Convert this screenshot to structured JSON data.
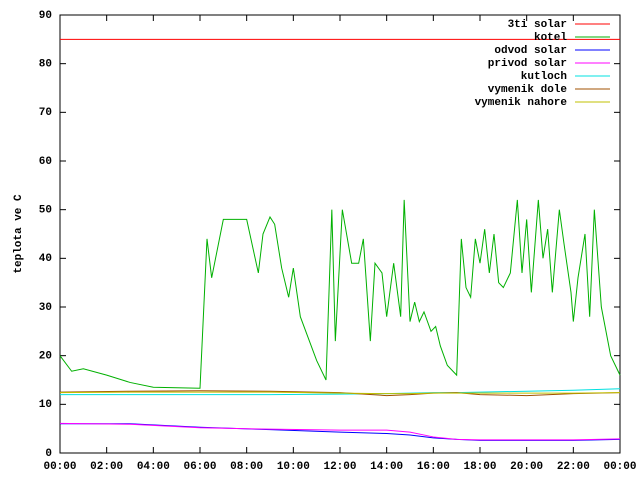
{
  "chart_data": {
    "type": "line",
    "ylabel": "teplota ve C",
    "xlim": [
      0,
      24
    ],
    "ylim": [
      0,
      90
    ],
    "xticks": [
      {
        "value": 0,
        "label": "00:00"
      },
      {
        "value": 2,
        "label": "02:00"
      },
      {
        "value": 4,
        "label": "04:00"
      },
      {
        "value": 6,
        "label": "06:00"
      },
      {
        "value": 8,
        "label": "08:00"
      },
      {
        "value": 10,
        "label": "10:00"
      },
      {
        "value": 12,
        "label": "12:00"
      },
      {
        "value": 14,
        "label": "14:00"
      },
      {
        "value": 16,
        "label": "16:00"
      },
      {
        "value": 18,
        "label": "18:00"
      },
      {
        "value": 20,
        "label": "20:00"
      },
      {
        "value": 22,
        "label": "22:00"
      },
      {
        "value": 24,
        "label": "00:00"
      }
    ],
    "yticks": [
      0,
      10,
      20,
      30,
      40,
      50,
      60,
      70,
      80,
      90
    ],
    "legend": "top-right",
    "series": [
      {
        "name": "3ti solar",
        "color": "#ff0000",
        "x": [
          0,
          24
        ],
        "values": [
          85,
          85
        ]
      },
      {
        "name": "kotel",
        "color": "#00b000",
        "x": [
          0,
          0.5,
          1,
          2,
          3,
          4,
          5,
          6,
          6.3,
          6.5,
          7,
          8,
          8.5,
          8.7,
          9,
          9.2,
          9.5,
          9.8,
          10,
          10.3,
          11,
          11.4,
          11.65,
          11.8,
          12.1,
          12.5,
          12.8,
          13,
          13.3,
          13.5,
          13.8,
          14,
          14.3,
          14.6,
          14.75,
          15,
          15.2,
          15.4,
          15.6,
          15.9,
          16.1,
          16.3,
          16.6,
          17,
          17.2,
          17.4,
          17.6,
          17.8,
          18,
          18.2,
          18.4,
          18.6,
          18.8,
          19,
          19.3,
          19.6,
          19.8,
          20,
          20.2,
          20.5,
          20.7,
          20.9,
          21.1,
          21.4,
          21.6,
          21.9,
          22,
          22.2,
          22.5,
          22.7,
          22.9,
          23.2,
          23.6,
          24
        ],
        "values": [
          20,
          16.8,
          17.3,
          16,
          14.5,
          13.5,
          13.4,
          13.3,
          44,
          36,
          48,
          48,
          37,
          45,
          48.5,
          47,
          38,
          32,
          38,
          28,
          19,
          15,
          50,
          23,
          50,
          39,
          39,
          44,
          23,
          39,
          37,
          28,
          39,
          28,
          52,
          27,
          31,
          27,
          29,
          25,
          26,
          22,
          18,
          16,
          44,
          34,
          32,
          44,
          39,
          46,
          37,
          45,
          35,
          34,
          37,
          52,
          37,
          48,
          33,
          52,
          40,
          46,
          33,
          50,
          43,
          33,
          27,
          36,
          45,
          28,
          50,
          30,
          20,
          16
        ]
      },
      {
        "name": "odvod solar",
        "color": "#0000ff",
        "x": [
          0,
          3,
          6,
          9,
          12,
          14,
          15,
          16,
          17,
          18,
          20,
          22,
          24
        ],
        "values": [
          6,
          6,
          5.3,
          4.8,
          4.3,
          4,
          3.7,
          3.1,
          2.8,
          2.6,
          2.6,
          2.6,
          2.8
        ]
      },
      {
        "name": "privod solar",
        "color": "#ff00ff",
        "x": [
          0,
          3,
          6,
          9,
          12,
          14,
          15,
          16,
          17,
          18,
          20,
          22,
          24
        ],
        "values": [
          6.1,
          5.9,
          5.2,
          4.9,
          4.7,
          4.7,
          4.3,
          3.3,
          2.8,
          2.7,
          2.7,
          2.7,
          2.9
        ]
      },
      {
        "name": "kutloch",
        "color": "#00e0e0",
        "x": [
          0,
          3,
          6,
          9,
          12,
          14,
          15,
          16,
          17,
          18,
          20,
          22,
          24
        ],
        "values": [
          12,
          12,
          12,
          12,
          12.1,
          12.2,
          12.3,
          12.4,
          12.4,
          12.5,
          12.7,
          12.9,
          13.2
        ]
      },
      {
        "name": "vymenik dole",
        "color": "#a05000",
        "x": [
          0,
          3,
          6,
          9,
          12,
          14,
          15,
          16,
          17,
          18,
          20,
          22,
          24
        ],
        "values": [
          12.5,
          12.7,
          12.8,
          12.7,
          12.4,
          11.8,
          12,
          12.3,
          12.4,
          12,
          11.8,
          12.2,
          12.4
        ]
      },
      {
        "name": "vymenik nahore",
        "color": "#c0c000",
        "x": [
          0,
          3,
          6,
          9,
          12,
          14,
          15,
          16,
          17,
          18,
          20,
          22,
          24
        ],
        "values": [
          12.4,
          12.5,
          12.5,
          12.5,
          12.3,
          12.2,
          12.2,
          12.3,
          12.3,
          12.3,
          12.3,
          12.3,
          12.4
        ]
      }
    ]
  }
}
